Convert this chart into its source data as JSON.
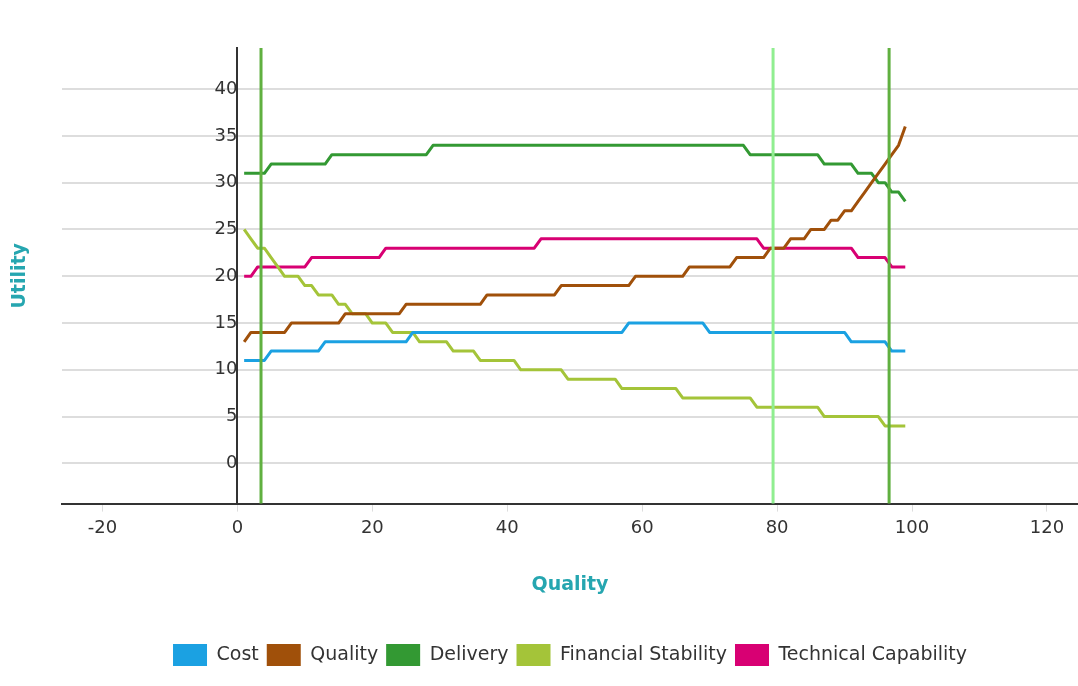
{
  "chart_data": {
    "type": "line",
    "xlabel": "Quality",
    "ylabel": "Utility",
    "xlim": [
      -26,
      124.6
    ],
    "xticks": [
      -20,
      0,
      20,
      40,
      60,
      80,
      100,
      120
    ],
    "ylim": [
      -4.3,
      44.4
    ],
    "yticks": [
      0,
      5,
      10,
      15,
      20,
      25,
      30,
      35,
      40
    ],
    "grid": "y",
    "legend": "bottom",
    "marker": "none",
    "line_style": "solid",
    "series": [
      {
        "name": "Cost",
        "color": "#1ba1e2",
        "x": [
          1,
          4,
          5,
          12,
          13,
          25,
          26,
          57,
          58,
          69,
          70,
          90,
          91,
          96,
          97,
          99
        ],
        "values": [
          11,
          11,
          12,
          12,
          13,
          13,
          14,
          14,
          15,
          15,
          14,
          14,
          13,
          13,
          12,
          12
        ]
      },
      {
        "name": "Quality",
        "color": "#a0500a",
        "x": [
          1,
          2,
          7,
          8,
          15,
          16,
          24,
          25,
          36,
          37,
          47,
          48,
          58,
          59,
          66,
          67,
          73,
          74,
          78,
          79,
          81,
          82,
          84,
          85,
          87,
          88,
          89,
          90,
          91,
          92,
          93,
          94,
          95,
          96,
          97,
          98,
          99
        ],
        "values": [
          13,
          14,
          14,
          15,
          15,
          16,
          16,
          17,
          17,
          18,
          18,
          19,
          19,
          20,
          20,
          21,
          21,
          22,
          22,
          23,
          23,
          24,
          24,
          25,
          25,
          26,
          26,
          27,
          27,
          28,
          29,
          30,
          31,
          32,
          33,
          34,
          36
        ]
      },
      {
        "name": "Delivery",
        "color": "#339933",
        "x": [
          1,
          4,
          5,
          13,
          14,
          28,
          29,
          75,
          76,
          86,
          87,
          91,
          92,
          94,
          95,
          96,
          97,
          98,
          99
        ],
        "values": [
          31,
          31,
          32,
          32,
          33,
          33,
          34,
          34,
          33,
          33,
          32,
          32,
          31,
          31,
          30,
          30,
          29,
          29,
          28
        ]
      },
      {
        "name": "Financial Stability",
        "color": "#a4c439",
        "x": [
          1,
          2,
          3,
          4,
          5,
          6,
          7,
          9,
          10,
          11,
          12,
          14,
          15,
          16,
          17,
          19,
          20,
          22,
          23,
          26,
          27,
          31,
          32,
          35,
          36,
          41,
          42,
          48,
          49,
          56,
          57,
          65,
          66,
          76,
          77,
          86,
          87,
          95,
          96,
          99
        ],
        "values": [
          25,
          24,
          23,
          23,
          22,
          21,
          20,
          20,
          19,
          19,
          18,
          18,
          17,
          17,
          16,
          16,
          15,
          15,
          14,
          14,
          13,
          13,
          12,
          12,
          11,
          11,
          10,
          10,
          9,
          9,
          8,
          8,
          7,
          7,
          6,
          6,
          5,
          5,
          4,
          4
        ]
      },
      {
        "name": "Technical Capability",
        "color": "#d80073",
        "x": [
          1,
          2,
          3,
          10,
          11,
          21,
          22,
          44,
          45,
          77,
          78,
          91,
          92,
          96,
          97,
          99
        ],
        "values": [
          20,
          20,
          21,
          21,
          22,
          22,
          23,
          23,
          24,
          24,
          23,
          23,
          22,
          22,
          21,
          21
        ]
      }
    ],
    "ref_lines": [
      {
        "axis": "x",
        "value": 3.5,
        "color": "#60b040"
      },
      {
        "axis": "x",
        "value": 79.4,
        "color": "#90ee90"
      },
      {
        "axis": "x",
        "value": 96.6,
        "color": "#60b040"
      }
    ]
  }
}
